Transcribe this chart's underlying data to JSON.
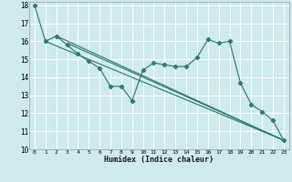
{
  "xlabel": "Humidex (Indice chaleur)",
  "bg_color": "#ceeaea",
  "grid_color": "#ffffff",
  "line_color": "#2e7d6e",
  "xlim": [
    -0.5,
    23.5
  ],
  "ylim": [
    10,
    18.2
  ],
  "xticks": [
    0,
    1,
    2,
    3,
    4,
    5,
    6,
    7,
    8,
    9,
    10,
    11,
    12,
    13,
    14,
    15,
    16,
    17,
    18,
    19,
    20,
    21,
    22,
    23
  ],
  "yticks": [
    10,
    11,
    12,
    13,
    14,
    15,
    16,
    17,
    18
  ],
  "main_x": [
    0,
    1,
    2,
    3,
    4,
    5,
    6,
    7,
    8,
    9,
    10,
    11,
    12,
    13,
    14,
    15,
    16,
    17,
    18,
    19,
    20,
    21,
    22,
    23
  ],
  "main_y": [
    18,
    16,
    16.3,
    15.8,
    15.3,
    14.9,
    14.5,
    13.5,
    13.5,
    12.7,
    14.4,
    14.8,
    14.7,
    14.6,
    14.6,
    15.1,
    16.1,
    15.9,
    16.0,
    13.7,
    12.5,
    12.1,
    11.6,
    10.5
  ],
  "straight_lines": [
    {
      "x": [
        1,
        23
      ],
      "y": [
        16,
        10.5
      ]
    },
    {
      "x": [
        2,
        23
      ],
      "y": [
        16.3,
        10.5
      ]
    },
    {
      "x": [
        3,
        23
      ],
      "y": [
        15.9,
        10.5
      ]
    }
  ]
}
